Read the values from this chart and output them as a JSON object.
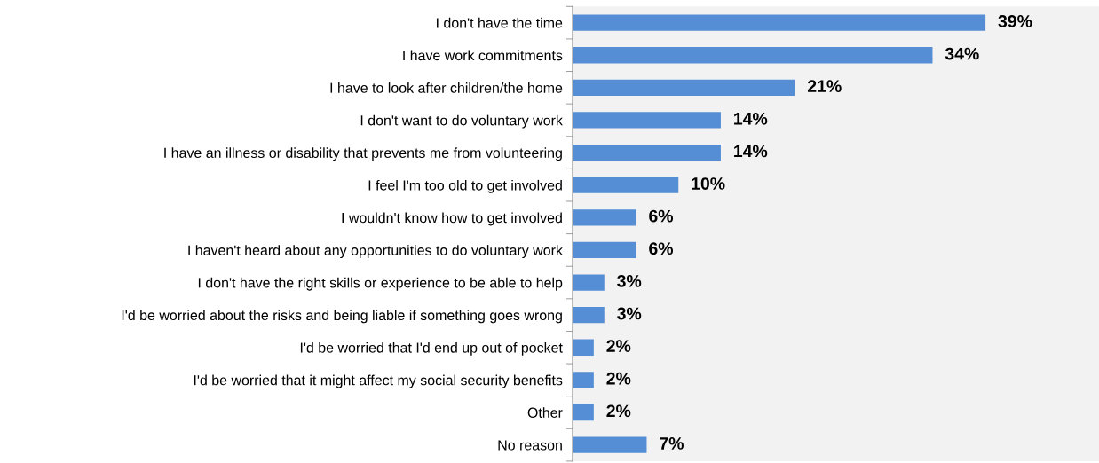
{
  "chart_data": {
    "type": "bar",
    "orientation": "horizontal",
    "categories": [
      "I don't have the time",
      "I have work commitments",
      "I have to look after children/the home",
      "I don't want to do voluntary work",
      "I have an illness or disability that prevents me from volunteering",
      "I feel I'm too old to get involved",
      "I wouldn't know how to get involved",
      "I haven't heard about any opportunities to do voluntary work",
      "I don't have the right skills or experience to be able to help",
      "I'd be worried about the risks and being liable if something goes wrong",
      "I'd be worried that I'd end up out of pocket",
      "I'd be worried that it might affect my social security benefits",
      "Other",
      "No reason"
    ],
    "values": [
      39,
      34,
      21,
      14,
      14,
      10,
      6,
      6,
      3,
      3,
      2,
      2,
      2,
      7
    ],
    "value_labels": [
      "39%",
      "34%",
      "21%",
      "14%",
      "14%",
      "10%",
      "6%",
      "6%",
      "3%",
      "3%",
      "2%",
      "2%",
      "2%",
      "7%"
    ],
    "color": "#558ed5",
    "grid": false,
    "legend": false
  }
}
